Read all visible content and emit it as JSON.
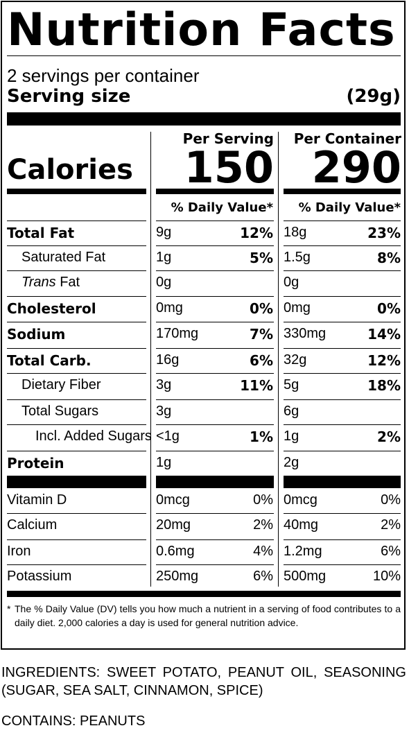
{
  "title": "Nutrition Facts",
  "servings_per_container": "2 servings per container",
  "serving_size_label": "Serving size",
  "serving_size_value": "(29g)",
  "columns": {
    "per_serving": "Per Serving",
    "per_container": "Per Container"
  },
  "calories": {
    "label": "Calories",
    "per_serving": "150",
    "per_container": "290"
  },
  "daily_value_header": "% Daily Value*",
  "nutrients": [
    {
      "label": "Total Fat",
      "bold": true,
      "indent": 0,
      "s_amt": "9g",
      "s_dv": "12%",
      "c_amt": "18g",
      "c_dv": "23%"
    },
    {
      "label": "Saturated Fat",
      "bold": false,
      "indent": 1,
      "s_amt": "1g",
      "s_dv": "5%",
      "c_amt": "1.5g",
      "c_dv": "8%"
    },
    {
      "label_italic": "Trans",
      "label": " Fat",
      "bold": false,
      "indent": 1,
      "s_amt": "0g",
      "s_dv": "",
      "c_amt": "0g",
      "c_dv": ""
    },
    {
      "label": "Cholesterol",
      "bold": true,
      "indent": 0,
      "s_amt": "0mg",
      "s_dv": "0%",
      "c_amt": "0mg",
      "c_dv": "0%"
    },
    {
      "label": "Sodium",
      "bold": true,
      "indent": 0,
      "s_amt": "170mg",
      "s_dv": "7%",
      "c_amt": "330mg",
      "c_dv": "14%"
    },
    {
      "label": "Total Carb.",
      "bold": true,
      "indent": 0,
      "s_amt": "16g",
      "s_dv": "6%",
      "c_amt": "32g",
      "c_dv": "12%"
    },
    {
      "label": "Dietary Fiber",
      "bold": false,
      "indent": 1,
      "s_amt": "3g",
      "s_dv": "11%",
      "c_amt": "5g",
      "c_dv": "18%"
    },
    {
      "label": "Total Sugars",
      "bold": false,
      "indent": 1,
      "s_amt": "3g",
      "s_dv": "",
      "c_amt": "6g",
      "c_dv": ""
    },
    {
      "label": "Incl. Added Sugars",
      "bold": false,
      "indent": 2,
      "s_amt": "<1g",
      "s_dv": "1%",
      "c_amt": "1g",
      "c_dv": "2%"
    },
    {
      "label": "Protein",
      "bold": true,
      "indent": 0,
      "s_amt": "1g",
      "s_dv": "",
      "c_amt": "2g",
      "c_dv": ""
    }
  ],
  "vitamins": [
    {
      "label": "Vitamin D",
      "s_amt": "0mcg",
      "s_dv": "0%",
      "c_amt": "0mcg",
      "c_dv": "0%"
    },
    {
      "label": "Calcium",
      "s_amt": "20mg",
      "s_dv": "2%",
      "c_amt": "40mg",
      "c_dv": "2%"
    },
    {
      "label": "Iron",
      "s_amt": "0.6mg",
      "s_dv": "4%",
      "c_amt": "1.2mg",
      "c_dv": "6%"
    },
    {
      "label": "Potassium",
      "s_amt": "250mg",
      "s_dv": "6%",
      "c_amt": "500mg",
      "c_dv": "10%"
    }
  ],
  "footnote": {
    "asterisk": "*",
    "text": "The % Daily Value (DV) tells you how much a nutrient in a serving of food contributes to a daily diet. 2,000 calories a day is used for general nutrition advice."
  },
  "ingredients": "INGREDIENTS: SWEET POTATO, PEANUT OIL, SEASONING (SUGAR, SEA SALT, CINNAMON, SPICE)",
  "contains": "CONTAINS: PEANUTS"
}
